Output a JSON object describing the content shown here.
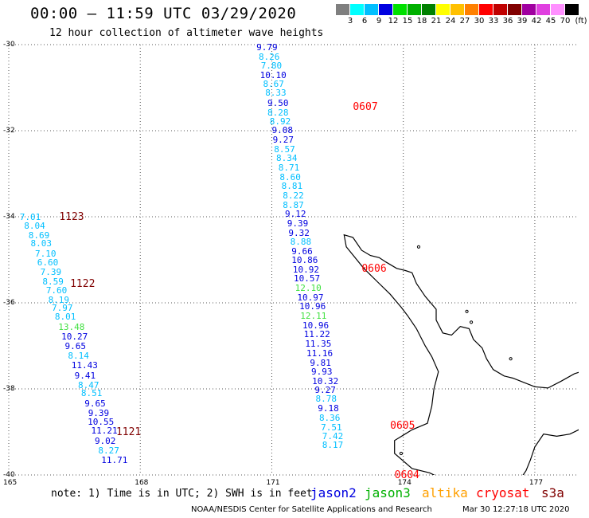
{
  "header": {
    "title": "00:00 – 11:59 UTC 03/29/2020",
    "subtitle": "12 hour collection of altimeter wave heights"
  },
  "color_scale": {
    "unit": "(ft)",
    "steps": [
      {
        "label": "3",
        "color": "#7f7f7f"
      },
      {
        "label": "6",
        "color": "#00ffff"
      },
      {
        "label": "9",
        "color": "#00bfff"
      },
      {
        "label": "12",
        "color": "#0000e0"
      },
      {
        "label": "15",
        "color": "#00e000"
      },
      {
        "label": "18",
        "color": "#00b000"
      },
      {
        "label": "21",
        "color": "#008000"
      },
      {
        "label": "24",
        "color": "#ffff00"
      },
      {
        "label": "27",
        "color": "#ffc000"
      },
      {
        "label": "30",
        "color": "#ff8000"
      },
      {
        "label": "33",
        "color": "#ff0000"
      },
      {
        "label": "36",
        "color": "#c00000"
      },
      {
        "label": "39",
        "color": "#800000"
      },
      {
        "label": "42",
        "color": "#a000a0"
      },
      {
        "label": "45",
        "color": "#e040e0"
      },
      {
        "label": "70",
        "color": "#ff90ff"
      },
      {
        "label": "",
        "color": "#000000"
      }
    ]
  },
  "map": {
    "lat_range": [
      -40,
      -30
    ],
    "lon_range": [
      165,
      178
    ],
    "lat_labels": [
      "-30",
      "-32",
      "-34",
      "-36",
      "-38",
      "-40"
    ],
    "lat_values": [
      -30,
      -32,
      -34,
      -36,
      -38,
      -40
    ],
    "lon_labels": [
      "165",
      "168",
      "171",
      "174",
      "177"
    ],
    "lon_values": [
      165,
      168,
      171,
      174,
      177
    ],
    "grid": "dotted",
    "land_outline": "North Island, New Zealand"
  },
  "passes": [
    {
      "label": "1123",
      "color": "#800000",
      "lon": 166.15,
      "lat": -34.0
    },
    {
      "label": "1122",
      "color": "#800000",
      "lon": 166.4,
      "lat": -35.55
    },
    {
      "label": "1121",
      "color": "#800000",
      "lon": 167.45,
      "lat": -39.0
    },
    {
      "label": "0607",
      "color": "#ff0000",
      "lon": 172.85,
      "lat": -31.45
    },
    {
      "label": "0606",
      "color": "#ff0000",
      "lon": 173.05,
      "lat": -35.2
    },
    {
      "label": "0605",
      "color": "#ff0000",
      "lon": 173.7,
      "lat": -38.85
    },
    {
      "label": "0604",
      "color": "#ff0000",
      "lon": 173.8,
      "lat": -40.0
    }
  ],
  "track_west": [
    {
      "v": "7.01",
      "c": "#00bfff",
      "lon": 165.25,
      "lat": -34.0
    },
    {
      "v": "8.04",
      "c": "#00bfff",
      "lon": 165.35,
      "lat": -34.2
    },
    {
      "v": "8.69",
      "c": "#00bfff",
      "lon": 165.45,
      "lat": -34.42
    },
    {
      "v": "8.03",
      "c": "#00bfff",
      "lon": 165.5,
      "lat": -34.62
    },
    {
      "v": "7.10",
      "c": "#00bfff",
      "lon": 165.6,
      "lat": -34.85
    },
    {
      "v": "6.60",
      "c": "#00bfff",
      "lon": 165.65,
      "lat": -35.05
    },
    {
      "v": "7.39",
      "c": "#00bfff",
      "lon": 165.72,
      "lat": -35.28
    },
    {
      "v": "8.59",
      "c": "#00bfff",
      "lon": 165.77,
      "lat": -35.5
    },
    {
      "v": "7.60",
      "c": "#00bfff",
      "lon": 165.85,
      "lat": -35.7
    },
    {
      "v": "8.19",
      "c": "#00bfff",
      "lon": 165.9,
      "lat": -35.92
    },
    {
      "v": "7.97",
      "c": "#00bfff",
      "lon": 165.98,
      "lat": -36.12
    },
    {
      "v": "8.01",
      "c": "#00bfff",
      "lon": 166.05,
      "lat": -36.32
    },
    {
      "v": "13.48",
      "c": "#40e040",
      "lon": 166.13,
      "lat": -36.55
    },
    {
      "v": "10.27",
      "c": "#0000e0",
      "lon": 166.2,
      "lat": -36.78
    },
    {
      "v": "9.65",
      "c": "#0000e0",
      "lon": 166.28,
      "lat": -37.0
    },
    {
      "v": "8.14",
      "c": "#00bfff",
      "lon": 166.35,
      "lat": -37.22
    },
    {
      "v": "11.43",
      "c": "#0000e0",
      "lon": 166.43,
      "lat": -37.45
    },
    {
      "v": "9.41",
      "c": "#0000e0",
      "lon": 166.5,
      "lat": -37.68
    },
    {
      "v": "8.47",
      "c": "#00bfff",
      "lon": 166.58,
      "lat": -37.9
    },
    {
      "v": "8.51",
      "c": "#00bfff",
      "lon": 166.65,
      "lat": -38.1
    },
    {
      "v": "9.65",
      "c": "#0000e0",
      "lon": 166.73,
      "lat": -38.33
    },
    {
      "v": "9.39",
      "c": "#0000e0",
      "lon": 166.81,
      "lat": -38.55
    },
    {
      "v": "10.55",
      "c": "#0000e0",
      "lon": 166.8,
      "lat": -38.75
    },
    {
      "v": "11.21",
      "c": "#0000e0",
      "lon": 166.88,
      "lat": -38.97
    },
    {
      "v": "9.02",
      "c": "#0000e0",
      "lon": 166.96,
      "lat": -39.2
    },
    {
      "v": "8.27",
      "c": "#00bfff",
      "lon": 167.04,
      "lat": -39.42
    },
    {
      "v": "11.71",
      "c": "#0000e0",
      "lon": 167.11,
      "lat": -39.65
    }
  ],
  "track_east": [
    {
      "v": "9.79",
      "c": "#0000e0",
      "lon": 170.65,
      "lat": -30.05
    },
    {
      "v": "8.26",
      "c": "#00bfff",
      "lon": 170.7,
      "lat": -30.27
    },
    {
      "v": "7.80",
      "c": "#00bfff",
      "lon": 170.75,
      "lat": -30.48
    },
    {
      "v": "10.10",
      "c": "#0000e0",
      "lon": 170.73,
      "lat": -30.7
    },
    {
      "v": "8.67",
      "c": "#00bfff",
      "lon": 170.8,
      "lat": -30.9
    },
    {
      "v": "8.33",
      "c": "#00bfff",
      "lon": 170.85,
      "lat": -31.12
    },
    {
      "v": "9.50",
      "c": "#0000e0",
      "lon": 170.9,
      "lat": -31.35
    },
    {
      "v": "8.28",
      "c": "#00bfff",
      "lon": 170.9,
      "lat": -31.57
    },
    {
      "v": "8.92",
      "c": "#00bfff",
      "lon": 170.95,
      "lat": -31.78
    },
    {
      "v": "9.08",
      "c": "#0000e0",
      "lon": 171.0,
      "lat": -31.98
    },
    {
      "v": "9.27",
      "c": "#0000e0",
      "lon": 171.02,
      "lat": -32.2
    },
    {
      "v": "8.57",
      "c": "#00bfff",
      "lon": 171.05,
      "lat": -32.42
    },
    {
      "v": "8.34",
      "c": "#00bfff",
      "lon": 171.1,
      "lat": -32.63
    },
    {
      "v": "8.71",
      "c": "#00bfff",
      "lon": 171.15,
      "lat": -32.85
    },
    {
      "v": "8.60",
      "c": "#00bfff",
      "lon": 171.18,
      "lat": -33.07
    },
    {
      "v": "8.81",
      "c": "#00bfff",
      "lon": 171.22,
      "lat": -33.28
    },
    {
      "v": "8.22",
      "c": "#00bfff",
      "lon": 171.25,
      "lat": -33.5
    },
    {
      "v": "8.87",
      "c": "#00bfff",
      "lon": 171.25,
      "lat": -33.72
    },
    {
      "v": "9.12",
      "c": "#0000e0",
      "lon": 171.3,
      "lat": -33.93
    },
    {
      "v": "9.39",
      "c": "#0000e0",
      "lon": 171.35,
      "lat": -34.15
    },
    {
      "v": "9.32",
      "c": "#0000e0",
      "lon": 171.38,
      "lat": -34.37
    },
    {
      "v": "8.88",
      "c": "#00bfff",
      "lon": 171.42,
      "lat": -34.57
    },
    {
      "v": "9.66",
      "c": "#0000e0",
      "lon": 171.45,
      "lat": -34.8
    },
    {
      "v": "10.86",
      "c": "#0000e0",
      "lon": 171.45,
      "lat": -35.0
    },
    {
      "v": "10.92",
      "c": "#0000e0",
      "lon": 171.48,
      "lat": -35.22
    },
    {
      "v": "10.57",
      "c": "#0000e0",
      "lon": 171.5,
      "lat": -35.43
    },
    {
      "v": "12.10",
      "c": "#40e040",
      "lon": 171.53,
      "lat": -35.65
    },
    {
      "v": "10.97",
      "c": "#0000e0",
      "lon": 171.58,
      "lat": -35.87
    },
    {
      "v": "10.96",
      "c": "#0000e0",
      "lon": 171.63,
      "lat": -36.08
    },
    {
      "v": "12.11",
      "c": "#40e040",
      "lon": 171.65,
      "lat": -36.3
    },
    {
      "v": "10.96",
      "c": "#0000e0",
      "lon": 171.7,
      "lat": -36.52
    },
    {
      "v": "11.22",
      "c": "#0000e0",
      "lon": 171.73,
      "lat": -36.73
    },
    {
      "v": "11.35",
      "c": "#0000e0",
      "lon": 171.76,
      "lat": -36.95
    },
    {
      "v": "11.16",
      "c": "#0000e0",
      "lon": 171.79,
      "lat": -37.17
    },
    {
      "v": "9.81",
      "c": "#0000e0",
      "lon": 171.87,
      "lat": -37.38
    },
    {
      "v": "9.93",
      "c": "#0000e0",
      "lon": 171.9,
      "lat": -37.6
    },
    {
      "v": "10.32",
      "c": "#0000e0",
      "lon": 171.92,
      "lat": -37.82
    },
    {
      "v": "9.27",
      "c": "#0000e0",
      "lon": 171.98,
      "lat": -38.02
    },
    {
      "v": "8.78",
      "c": "#00bfff",
      "lon": 172.0,
      "lat": -38.23
    },
    {
      "v": "9.18",
      "c": "#0000e0",
      "lon": 172.05,
      "lat": -38.45
    },
    {
      "v": "8.36",
      "c": "#00bfff",
      "lon": 172.08,
      "lat": -38.67
    },
    {
      "v": "7.51",
      "c": "#00bfff",
      "lon": 172.12,
      "lat": -38.88
    },
    {
      "v": "7.42",
      "c": "#00bfff",
      "lon": 172.15,
      "lat": -39.1
    },
    {
      "v": "8.17",
      "c": "#00bfff",
      "lon": 172.15,
      "lat": -39.3
    }
  ],
  "footer": {
    "note": "note: 1) Time is in UTC; 2) SWH is in feet",
    "credit": "NOAA/NESDIS Center for Satellite Applications and Research",
    "timestamp": "Mar 30 12:27:18 UTC 2020",
    "legend": [
      {
        "name": "jason2",
        "color": "#0000e0"
      },
      {
        "name": "jason3",
        "color": "#00b000"
      },
      {
        "name": "altika",
        "color": "#ffa000"
      },
      {
        "name": "cryosat",
        "color": "#ff0000"
      },
      {
        "name": "s3a",
        "color": "#800000"
      }
    ]
  }
}
